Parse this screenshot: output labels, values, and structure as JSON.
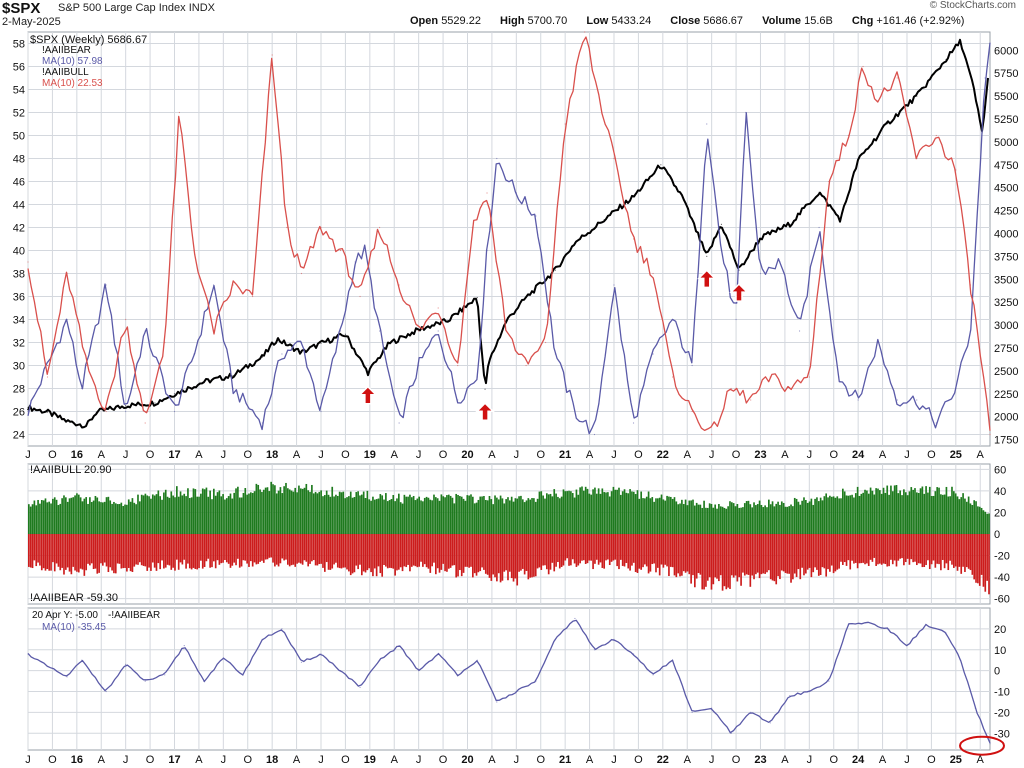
{
  "header": {
    "symbol": "$SPX",
    "name": "S&P 500 Large Cap Index",
    "exchange": "INDX",
    "date": "2-May-2025",
    "brand": "© StockCharts.com",
    "open_label": "Open",
    "open": "5529.22",
    "high_label": "High",
    "high": "5700.70",
    "low_label": "Low",
    "low": "5433.24",
    "close_label": "Close",
    "close": "5686.67",
    "volume_label": "Volume",
    "volume": "15.6B",
    "chg_label": "Chg",
    "chg": "+161.46 (+2.92%)"
  },
  "legend": {
    "spx": "$SPX (Weekly) 5686.67",
    "bear": "!AAIIBEAR",
    "bear_ma": "MA(10) 57.98",
    "bull": "!AAIIBULL",
    "bull_ma": "MA(10) 22.53",
    "mid_bull": "!AAIIBULL 20.90",
    "mid_bear": "!AAIIBEAR -59.30",
    "bot_title": "20 Apr Y: -5.00",
    "bot_series": "-!AAIIBEAR",
    "bot_ma": "MA(10) -35.45"
  },
  "colors": {
    "spx": "#000000",
    "bear": "#5a5aa8",
    "bull": "#d9504c",
    "bar_bull": "#1e7a1e",
    "bar_bear": "#cc1c1c",
    "grid": "#d4d8de",
    "bg": "#ffffff",
    "arrow": "#d01010"
  },
  "x_ticks": [
    "J",
    "O",
    "16",
    "A",
    "J",
    "O",
    "17",
    "A",
    "J",
    "O",
    "18",
    "A",
    "J",
    "O",
    "19",
    "A",
    "J",
    "O",
    "20",
    "A",
    "J",
    "O",
    "21",
    "A",
    "J",
    "O",
    "22",
    "A",
    "J",
    "O",
    "23",
    "A",
    "J",
    "O",
    "24",
    "A",
    "J",
    "O",
    "25",
    "A"
  ],
  "chart_data": [
    {
      "type": "line",
      "panel": "top",
      "left_axis_ticks": [
        24,
        26,
        28,
        30,
        32,
        34,
        36,
        38,
        40,
        42,
        44,
        46,
        48,
        50,
        52,
        54,
        56,
        58
      ],
      "right_axis_ticks": [
        1750,
        2000,
        2250,
        2500,
        2750,
        3000,
        3250,
        3500,
        3750,
        4000,
        4250,
        4500,
        4750,
        5000,
        5250,
        5500,
        5750,
        6000
      ],
      "left_ylim": [
        23,
        59
      ],
      "right_ylim": [
        1680,
        6200
      ],
      "x_range": [
        2015.5,
        2025.35
      ],
      "series": [
        {
          "name": "$SPX (Weekly) 5686.67",
          "axis": "right",
          "x": [
            2015.5,
            2015.7,
            2015.9,
            2016.1,
            2016.2,
            2016.5,
            2016.8,
            2017.0,
            2017.3,
            2017.6,
            2017.9,
            2018.05,
            2018.3,
            2018.5,
            2018.75,
            2018.98,
            2019.2,
            2019.5,
            2019.8,
            2020.1,
            2020.18,
            2020.22,
            2020.4,
            2020.6,
            2020.9,
            2021.1,
            2021.4,
            2021.7,
            2021.98,
            2022.2,
            2022.45,
            2022.6,
            2022.78,
            2023.0,
            2023.3,
            2023.6,
            2023.82,
            2024.0,
            2024.3,
            2024.6,
            2024.9,
            2025.05,
            2025.18,
            2025.27,
            2025.33
          ],
          "values": [
            2100,
            2050,
            1950,
            1900,
            2050,
            2120,
            2150,
            2250,
            2380,
            2450,
            2650,
            2850,
            2700,
            2800,
            2900,
            2480,
            2800,
            2950,
            3050,
            3300,
            2300,
            2600,
            3050,
            3300,
            3600,
            3900,
            4150,
            4400,
            4750,
            4400,
            3750,
            4100,
            3600,
            3950,
            4100,
            4450,
            4150,
            4800,
            5200,
            5500,
            5900,
            6100,
            5600,
            5100,
            5686
          ]
        },
        {
          "name": "!AAIIBEAR MA(10) 57.98",
          "axis": "left",
          "x": [
            2015.5,
            2015.7,
            2015.9,
            2016.05,
            2016.3,
            2016.5,
            2016.7,
            2017.0,
            2017.2,
            2017.4,
            2017.6,
            2017.9,
            2018.1,
            2018.3,
            2018.5,
            2018.7,
            2018.85,
            2018.95,
            2019.1,
            2019.3,
            2019.5,
            2019.7,
            2019.9,
            2020.1,
            2020.2,
            2020.3,
            2020.5,
            2020.7,
            2020.9,
            2021.1,
            2021.3,
            2021.5,
            2021.7,
            2021.9,
            2022.1,
            2022.3,
            2022.45,
            2022.6,
            2022.75,
            2022.85,
            2023.0,
            2023.2,
            2023.4,
            2023.6,
            2023.8,
            2024.0,
            2024.2,
            2024.4,
            2024.6,
            2024.8,
            2025.0,
            2025.15,
            2025.3,
            2025.35
          ],
          "values": [
            26,
            30,
            34,
            28,
            37,
            26,
            33,
            26,
            31,
            37,
            28,
            25,
            31,
            32,
            26,
            33,
            39,
            40,
            33,
            25,
            30,
            33,
            27,
            29,
            40,
            48,
            45,
            43,
            31,
            26,
            24,
            37,
            25,
            31,
            34,
            30,
            51,
            40,
            34,
            52,
            38,
            39,
            33,
            42,
            29,
            27,
            32,
            27,
            27,
            25,
            28,
            33,
            55,
            58
          ]
        },
        {
          "name": "!AAIIBULL MA(10) 22.53",
          "axis": "left",
          "x": [
            2015.5,
            2015.7,
            2015.9,
            2016.1,
            2016.3,
            2016.5,
            2016.7,
            2016.9,
            2017.05,
            2017.2,
            2017.4,
            2017.6,
            2017.8,
            2018.0,
            2018.15,
            2018.3,
            2018.5,
            2018.7,
            2018.9,
            2019.1,
            2019.3,
            2019.5,
            2019.7,
            2019.9,
            2020.05,
            2020.2,
            2020.4,
            2020.6,
            2020.8,
            2021.0,
            2021.2,
            2021.3,
            2021.5,
            2021.7,
            2021.9,
            2022.1,
            2022.3,
            2022.5,
            2022.7,
            2022.9,
            2023.1,
            2023.3,
            2023.5,
            2023.7,
            2023.9,
            2024.05,
            2024.2,
            2024.4,
            2024.6,
            2024.8,
            2025.0,
            2025.15,
            2025.3,
            2025.35
          ],
          "values": [
            39,
            29,
            38,
            30,
            26,
            34,
            25,
            32,
            52,
            40,
            33,
            37,
            36,
            57,
            42,
            38,
            42,
            40,
            36,
            42,
            37,
            33,
            35,
            30,
            42,
            45,
            33,
            30,
            32,
            51,
            59,
            55,
            48,
            41,
            38,
            29,
            26,
            24,
            28,
            27,
            29,
            28,
            29,
            46,
            50,
            56,
            53,
            55,
            48,
            50,
            47,
            37,
            28,
            24
          ]
        }
      ]
    },
    {
      "type": "bar",
      "panel": "middle",
      "ylim": [
        -65,
        65
      ],
      "axis_ticks": [
        60,
        40,
        20,
        0,
        -20,
        -40,
        -60
      ],
      "series": [
        {
          "name": "!AAIIBULL 20.90",
          "envelope_x": [
            2015.5,
            2016.0,
            2016.5,
            2017.0,
            2017.5,
            2018.0,
            2018.5,
            2019.0,
            2019.5,
            2020.0,
            2020.5,
            2021.0,
            2021.5,
            2022.0,
            2022.5,
            2023.0,
            2023.5,
            2024.0,
            2024.5,
            2025.0,
            2025.35
          ],
          "values": [
            32,
            38,
            34,
            45,
            42,
            50,
            45,
            40,
            36,
            38,
            35,
            45,
            44,
            38,
            30,
            32,
            35,
            46,
            47,
            44,
            21
          ]
        },
        {
          "name": "!AAIIBEAR -59.30",
          "envelope_x": [
            2015.5,
            2016.0,
            2016.5,
            2017.0,
            2017.5,
            2018.0,
            2018.5,
            2019.0,
            2019.5,
            2020.0,
            2020.5,
            2021.0,
            2021.5,
            2022.0,
            2022.5,
            2023.0,
            2023.5,
            2024.0,
            2024.5,
            2025.0,
            2025.35
          ],
          "values": [
            -33,
            -40,
            -36,
            -34,
            -32,
            -30,
            -35,
            -42,
            -36,
            -42,
            -48,
            -32,
            -33,
            -40,
            -55,
            -48,
            -44,
            -32,
            -30,
            -36,
            -59
          ]
        }
      ]
    },
    {
      "type": "line",
      "panel": "bottom",
      "ylim": [
        -38,
        30
      ],
      "axis_ticks": [
        20,
        10,
        0,
        -10,
        -20,
        -30
      ],
      "series": [
        {
          "name": "MA(10) -35.45",
          "x": [
            2015.5,
            2015.7,
            2015.9,
            2016.05,
            2016.3,
            2016.5,
            2016.7,
            2016.9,
            2017.1,
            2017.3,
            2017.5,
            2017.7,
            2017.9,
            2018.1,
            2018.3,
            2018.5,
            2018.7,
            2018.9,
            2019.1,
            2019.3,
            2019.5,
            2019.7,
            2019.9,
            2020.1,
            2020.3,
            2020.5,
            2020.7,
            2020.9,
            2021.1,
            2021.3,
            2021.5,
            2021.7,
            2021.9,
            2022.1,
            2022.3,
            2022.5,
            2022.7,
            2022.9,
            2023.1,
            2023.3,
            2023.5,
            2023.7,
            2023.9,
            2024.1,
            2024.3,
            2024.5,
            2024.7,
            2024.9,
            2025.05,
            2025.2,
            2025.35
          ],
          "values": [
            8,
            2,
            -3,
            5,
            -10,
            3,
            -5,
            -2,
            12,
            -5,
            6,
            -2,
            15,
            20,
            4,
            8,
            0,
            -8,
            5,
            12,
            0,
            8,
            -2,
            5,
            -15,
            -10,
            -5,
            15,
            25,
            10,
            15,
            8,
            -2,
            5,
            -20,
            -18,
            -30,
            -20,
            -25,
            -12,
            -10,
            -5,
            22,
            23,
            20,
            12,
            22,
            18,
            5,
            -18,
            -35
          ]
        }
      ]
    }
  ]
}
